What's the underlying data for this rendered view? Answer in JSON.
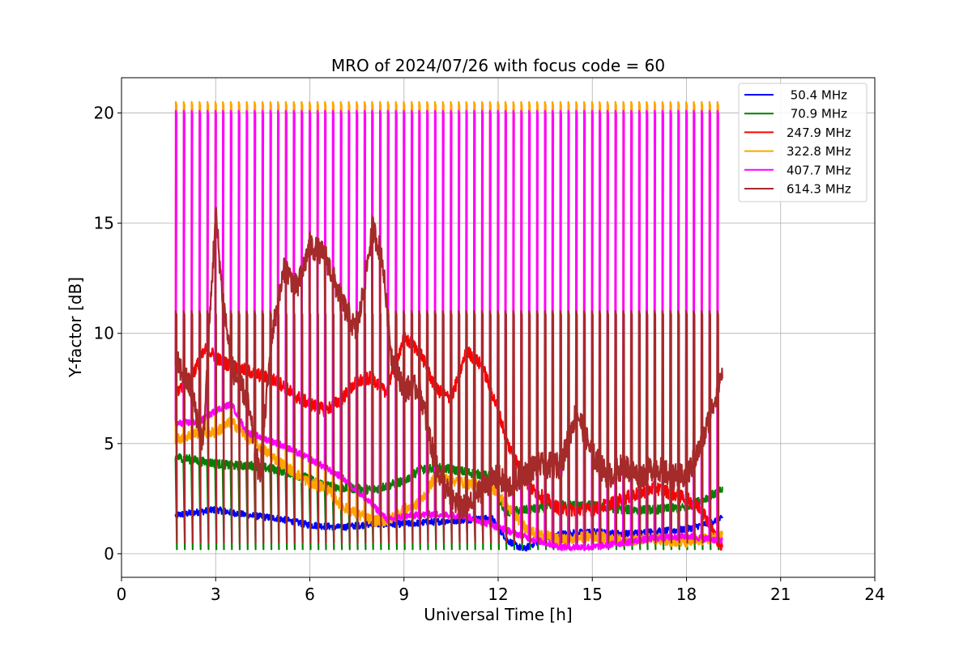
{
  "chart_data": {
    "type": "line",
    "title": "MRO of 2024/07/26 with focus code = 60",
    "xlabel": "Universal Time [h]",
    "ylabel": "Y-factor [dB]",
    "xlim": [
      0,
      24
    ],
    "ylim": [
      -1.07,
      21.6
    ],
    "xticks": [
      0,
      3,
      6,
      9,
      12,
      15,
      18,
      21,
      24
    ],
    "yticks": [
      0,
      5,
      10,
      15,
      20
    ],
    "grid": true,
    "legend_position": "top-right",
    "data_x_range": [
      1.72,
      19.15
    ],
    "spike_period_h": 0.25,
    "series": [
      {
        "name": " 50.4 MHz",
        "color": "#0000ff",
        "base": [
          [
            1.72,
            1.75
          ],
          [
            2.5,
            1.9
          ],
          [
            3,
            2.0
          ],
          [
            4,
            1.75
          ],
          [
            5,
            1.6
          ],
          [
            6,
            1.3
          ],
          [
            7,
            1.2
          ],
          [
            8,
            1.35
          ],
          [
            9,
            1.35
          ],
          [
            10,
            1.45
          ],
          [
            11,
            1.55
          ],
          [
            11.8,
            1.6
          ],
          [
            12.3,
            0.6
          ],
          [
            12.8,
            0.2
          ],
          [
            13.2,
            0.5
          ],
          [
            14,
            0.9
          ],
          [
            15,
            1.0
          ],
          [
            16,
            0.9
          ],
          [
            17,
            1.0
          ],
          [
            18,
            1.1
          ],
          [
            19.15,
            1.6
          ]
        ],
        "spike_min": [],
        "spike_max": [],
        "noise": 0.15
      },
      {
        "name": " 70.9 MHz",
        "color": "#008000",
        "base": [
          [
            1.72,
            4.4
          ],
          [
            2.5,
            4.2
          ],
          [
            3,
            4.1
          ],
          [
            3.5,
            4.0
          ],
          [
            4.2,
            4.0
          ],
          [
            5,
            3.8
          ],
          [
            6,
            3.4
          ],
          [
            6.5,
            3.1
          ],
          [
            7,
            3.0
          ],
          [
            8,
            2.9
          ],
          [
            9,
            3.3
          ],
          [
            9.5,
            3.8
          ],
          [
            10.2,
            3.9
          ],
          [
            11,
            3.7
          ],
          [
            11.8,
            3.5
          ],
          [
            12.2,
            1.9
          ],
          [
            13,
            2.0
          ],
          [
            14,
            2.2
          ],
          [
            15,
            2.2
          ],
          [
            16,
            2.0
          ],
          [
            17,
            2.0
          ],
          [
            18,
            2.1
          ],
          [
            19.15,
            2.9
          ]
        ],
        "spike_min": [
          [
            1.72,
            0.2
          ],
          [
            12,
            0.2
          ],
          [
            19.15,
            0.2
          ]
        ],
        "spike_max": [],
        "noise": 0.2
      },
      {
        "name": "247.9 MHz",
        "color": "#ff0000",
        "base": [
          [
            1.72,
            7.3
          ],
          [
            2.2,
            8.0
          ],
          [
            2.7,
            9.3
          ],
          [
            3.2,
            8.7
          ],
          [
            4,
            8.3
          ],
          [
            5,
            7.8
          ],
          [
            5.5,
            7.2
          ],
          [
            6,
            6.8
          ],
          [
            6.5,
            6.5
          ],
          [
            7,
            7.0
          ],
          [
            7.5,
            7.8
          ],
          [
            8,
            8.0
          ],
          [
            8.4,
            7.3
          ],
          [
            8.7,
            8.5
          ],
          [
            9,
            9.8
          ],
          [
            9.5,
            9.2
          ],
          [
            10,
            7.5
          ],
          [
            10.5,
            7.0
          ],
          [
            11,
            9.2
          ],
          [
            11.5,
            8.5
          ],
          [
            12,
            6.5
          ],
          [
            12.3,
            5.0
          ],
          [
            13,
            3.0
          ],
          [
            14,
            2.0
          ],
          [
            15,
            2.0
          ],
          [
            16,
            2.5
          ],
          [
            17,
            3.0
          ],
          [
            18,
            2.5
          ],
          [
            18.5,
            2.0
          ],
          [
            19.15,
            0.2
          ]
        ],
        "spike_min": [],
        "spike_max": [],
        "noise": 0.3
      },
      {
        "name": "322.8 MHz",
        "color": "#ffa500",
        "base": [
          [
            1.72,
            5.2
          ],
          [
            2.5,
            5.5
          ],
          [
            3,
            5.5
          ],
          [
            3.5,
            6.0
          ],
          [
            4,
            5.3
          ],
          [
            5,
            4.2
          ],
          [
            6,
            3.2
          ],
          [
            6.5,
            3.0
          ],
          [
            7,
            2.2
          ],
          [
            7.5,
            1.8
          ],
          [
            8,
            1.5
          ],
          [
            8.5,
            1.5
          ],
          [
            9,
            2.0
          ],
          [
            9.5,
            2.3
          ],
          [
            10,
            3.5
          ],
          [
            11,
            3.2
          ],
          [
            11.8,
            3.0
          ],
          [
            12.5,
            1.8
          ],
          [
            13,
            1.0
          ],
          [
            14,
            0.6
          ],
          [
            15,
            0.8
          ],
          [
            16,
            0.6
          ],
          [
            17,
            0.7
          ],
          [
            18,
            0.5
          ],
          [
            19.15,
            0.8
          ]
        ],
        "spike_min": [],
        "spike_max": [
          [
            1.72,
            20.5
          ],
          [
            19.15,
            20.5
          ]
        ],
        "noise": 0.25
      },
      {
        "name": "407.7 MHz",
        "color": "#ff00ff",
        "base": [
          [
            1.72,
            5.9
          ],
          [
            2.5,
            6.0
          ],
          [
            3,
            6.5
          ],
          [
            3.5,
            6.8
          ],
          [
            4,
            5.5
          ],
          [
            5,
            5.0
          ],
          [
            6,
            4.3
          ],
          [
            7,
            3.5
          ],
          [
            8,
            2.2
          ],
          [
            8.5,
            1.5
          ],
          [
            9,
            1.7
          ],
          [
            10,
            1.8
          ],
          [
            11,
            1.7
          ],
          [
            12,
            1.2
          ],
          [
            13,
            0.7
          ],
          [
            14,
            0.3
          ],
          [
            15,
            0.3
          ],
          [
            16,
            0.5
          ],
          [
            17,
            0.7
          ],
          [
            18,
            0.8
          ],
          [
            19.15,
            0.6
          ]
        ],
        "spike_min": [],
        "spike_max": [
          [
            1.72,
            20.1
          ],
          [
            19.15,
            20.1
          ]
        ],
        "noise": 0.15
      },
      {
        "name": "614.3 MHz",
        "color": "#a52a2a",
        "base": [
          [
            1.72,
            8.8
          ],
          [
            2.2,
            7.5
          ],
          [
            2.6,
            5.0
          ],
          [
            3.0,
            15.5
          ],
          [
            3.2,
            12.0
          ],
          [
            3.5,
            8.5
          ],
          [
            4.0,
            7.0
          ],
          [
            4.4,
            3.5
          ],
          [
            4.8,
            10.0
          ],
          [
            5.2,
            13.0
          ],
          [
            5.6,
            12.0
          ],
          [
            6.0,
            14.0
          ],
          [
            6.5,
            13.5
          ],
          [
            7.0,
            11.5
          ],
          [
            7.5,
            10.0
          ],
          [
            8.0,
            14.8
          ],
          [
            8.3,
            13.5
          ],
          [
            8.6,
            9.0
          ],
          [
            9.0,
            7.5
          ],
          [
            9.5,
            7.5
          ],
          [
            10,
            4.0
          ],
          [
            10.5,
            2.5
          ],
          [
            11,
            2.0
          ],
          [
            11.5,
            3.0
          ],
          [
            12,
            3.5
          ],
          [
            12.3,
            3.0
          ],
          [
            12.7,
            3.5
          ],
          [
            13.2,
            4.0
          ],
          [
            14,
            4.0
          ],
          [
            14.5,
            6.5
          ],
          [
            15,
            4.5
          ],
          [
            15.5,
            3.5
          ],
          [
            16,
            4.0
          ],
          [
            16.5,
            3.5
          ],
          [
            17,
            4.0
          ],
          [
            17.5,
            3.5
          ],
          [
            18,
            3.5
          ],
          [
            18.5,
            5.0
          ],
          [
            19.15,
            8.3
          ]
        ],
        "spike_min": [
          [
            1.72,
            0.5
          ],
          [
            19.15,
            0.5
          ]
        ],
        "spike_max": [
          [
            1.72,
            11.0
          ],
          [
            19.15,
            11.0
          ]
        ],
        "noise": 0.6
      }
    ]
  }
}
